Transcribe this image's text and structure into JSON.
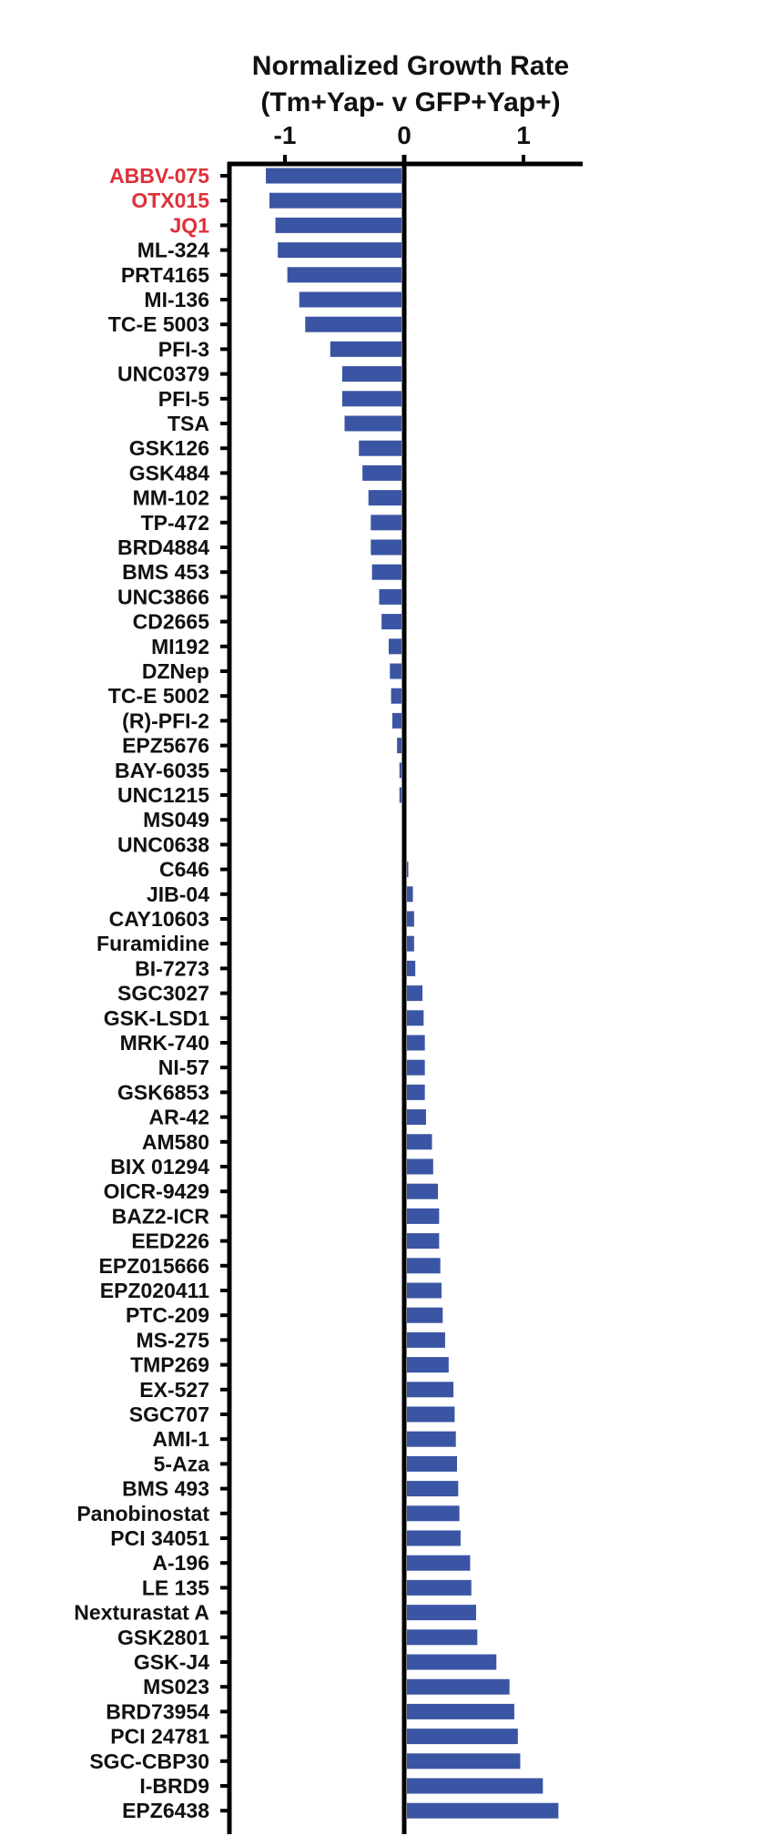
{
  "chart_data": {
    "type": "bar",
    "orientation": "horizontal",
    "title": "Normalized Growth Rate",
    "subtitle": "(Tm+Yap- v GFP+Yap+)",
    "xlim": [
      -1.5,
      1.5
    ],
    "xticks": [
      -1,
      0,
      1
    ],
    "xtick_labels": [
      "-1",
      "0",
      "1"
    ],
    "bar_color": "#3a55a4",
    "highlight_color": "#e0303a",
    "label_color": "#111111",
    "grid": false,
    "categories": [
      "ABBV-075",
      "OTX015",
      "JQ1",
      "ML-324",
      "PRT4165",
      "MI-136",
      "TC-E 5003",
      "PFI-3",
      "UNC0379",
      "PFI-5",
      "TSA",
      "GSK126",
      "GSK484",
      "MM-102",
      "TP-472",
      "BRD4884",
      "BMS 453",
      "UNC3866",
      "CD2665",
      "MI192",
      "DZNep",
      "TC-E 5002",
      "(R)-PFI-2",
      "EPZ5676",
      "BAY-6035",
      "UNC1215",
      "MS049",
      "UNC0638",
      "C646",
      "JIB-04",
      "CAY10603",
      "Furamidine",
      "BI-7273",
      "SGC3027",
      "GSK-LSD1",
      "MRK-740",
      "NI-57",
      "GSK6853",
      "AR-42",
      "AM580",
      "BIX 01294",
      "OICR-9429 ",
      "BAZ2-ICR",
      "EED226",
      "EPZ015666",
      "EPZ020411",
      "PTC-209",
      "MS-275",
      "TMP269",
      "EX-527",
      "SGC707",
      "AMI-1",
      "5-Aza",
      "BMS 493",
      "Panobinostat",
      "PCI 34051",
      "A-196",
      "LE 135",
      "Nexturastat A",
      "GSK2801",
      "GSK-J4",
      "MS023",
      "BRD73954",
      "PCI 24781",
      "SGC-CBP30",
      "I-BRD9",
      "EPZ6438"
    ],
    "values": [
      -1.16,
      -1.13,
      -1.08,
      -1.06,
      -0.98,
      -0.88,
      -0.83,
      -0.62,
      -0.52,
      -0.52,
      -0.5,
      -0.38,
      -0.35,
      -0.3,
      -0.28,
      -0.28,
      -0.27,
      -0.21,
      -0.19,
      -0.13,
      -0.12,
      -0.11,
      -0.1,
      -0.06,
      -0.04,
      -0.04,
      0.0,
      0.0,
      0.005,
      0.05,
      0.06,
      0.06,
      0.07,
      0.13,
      0.14,
      0.15,
      0.15,
      0.15,
      0.16,
      0.21,
      0.22,
      0.26,
      0.27,
      0.27,
      0.28,
      0.29,
      0.3,
      0.32,
      0.35,
      0.39,
      0.4,
      0.41,
      0.42,
      0.43,
      0.44,
      0.45,
      0.53,
      0.54,
      0.58,
      0.59,
      0.75,
      0.86,
      0.9,
      0.93,
      0.95,
      1.14,
      1.27
    ],
    "highlighted": [
      "ABBV-075",
      "OTX015",
      "JQ1"
    ]
  }
}
